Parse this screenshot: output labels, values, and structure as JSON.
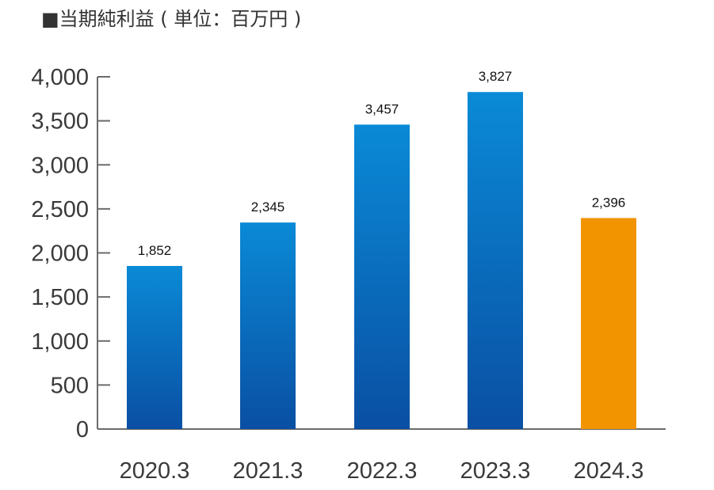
{
  "chart_data": {
    "type": "bar",
    "title": "■当期純利益 ( 単位：百万円 )",
    "xlabel": "",
    "ylabel": "",
    "categories": [
      "2020.3",
      "2021.3",
      "2022.3",
      "2023.3",
      "2024.3"
    ],
    "values": [
      1852,
      2345,
      3457,
      3827,
      2396
    ],
    "data_labels": [
      "1,852",
      "2,345",
      "3,457",
      "3,827",
      "2,396"
    ],
    "ylim": [
      0,
      4000
    ],
    "yticks": [
      0,
      500,
      1000,
      1500,
      2000,
      2500,
      3000,
      3500,
      4000
    ],
    "ytick_labels": [
      "0",
      "500",
      "1,000",
      "1,500",
      "2,000",
      "2,500",
      "3,000",
      "3,500",
      "4,000"
    ],
    "grid": false,
    "colors": {
      "bar_top": "#0a8ad6",
      "bar_bottom": "#0a4fa3",
      "highlight_bar": "#f29400",
      "axis": "#6b6b6b"
    },
    "highlight_index": 4
  }
}
